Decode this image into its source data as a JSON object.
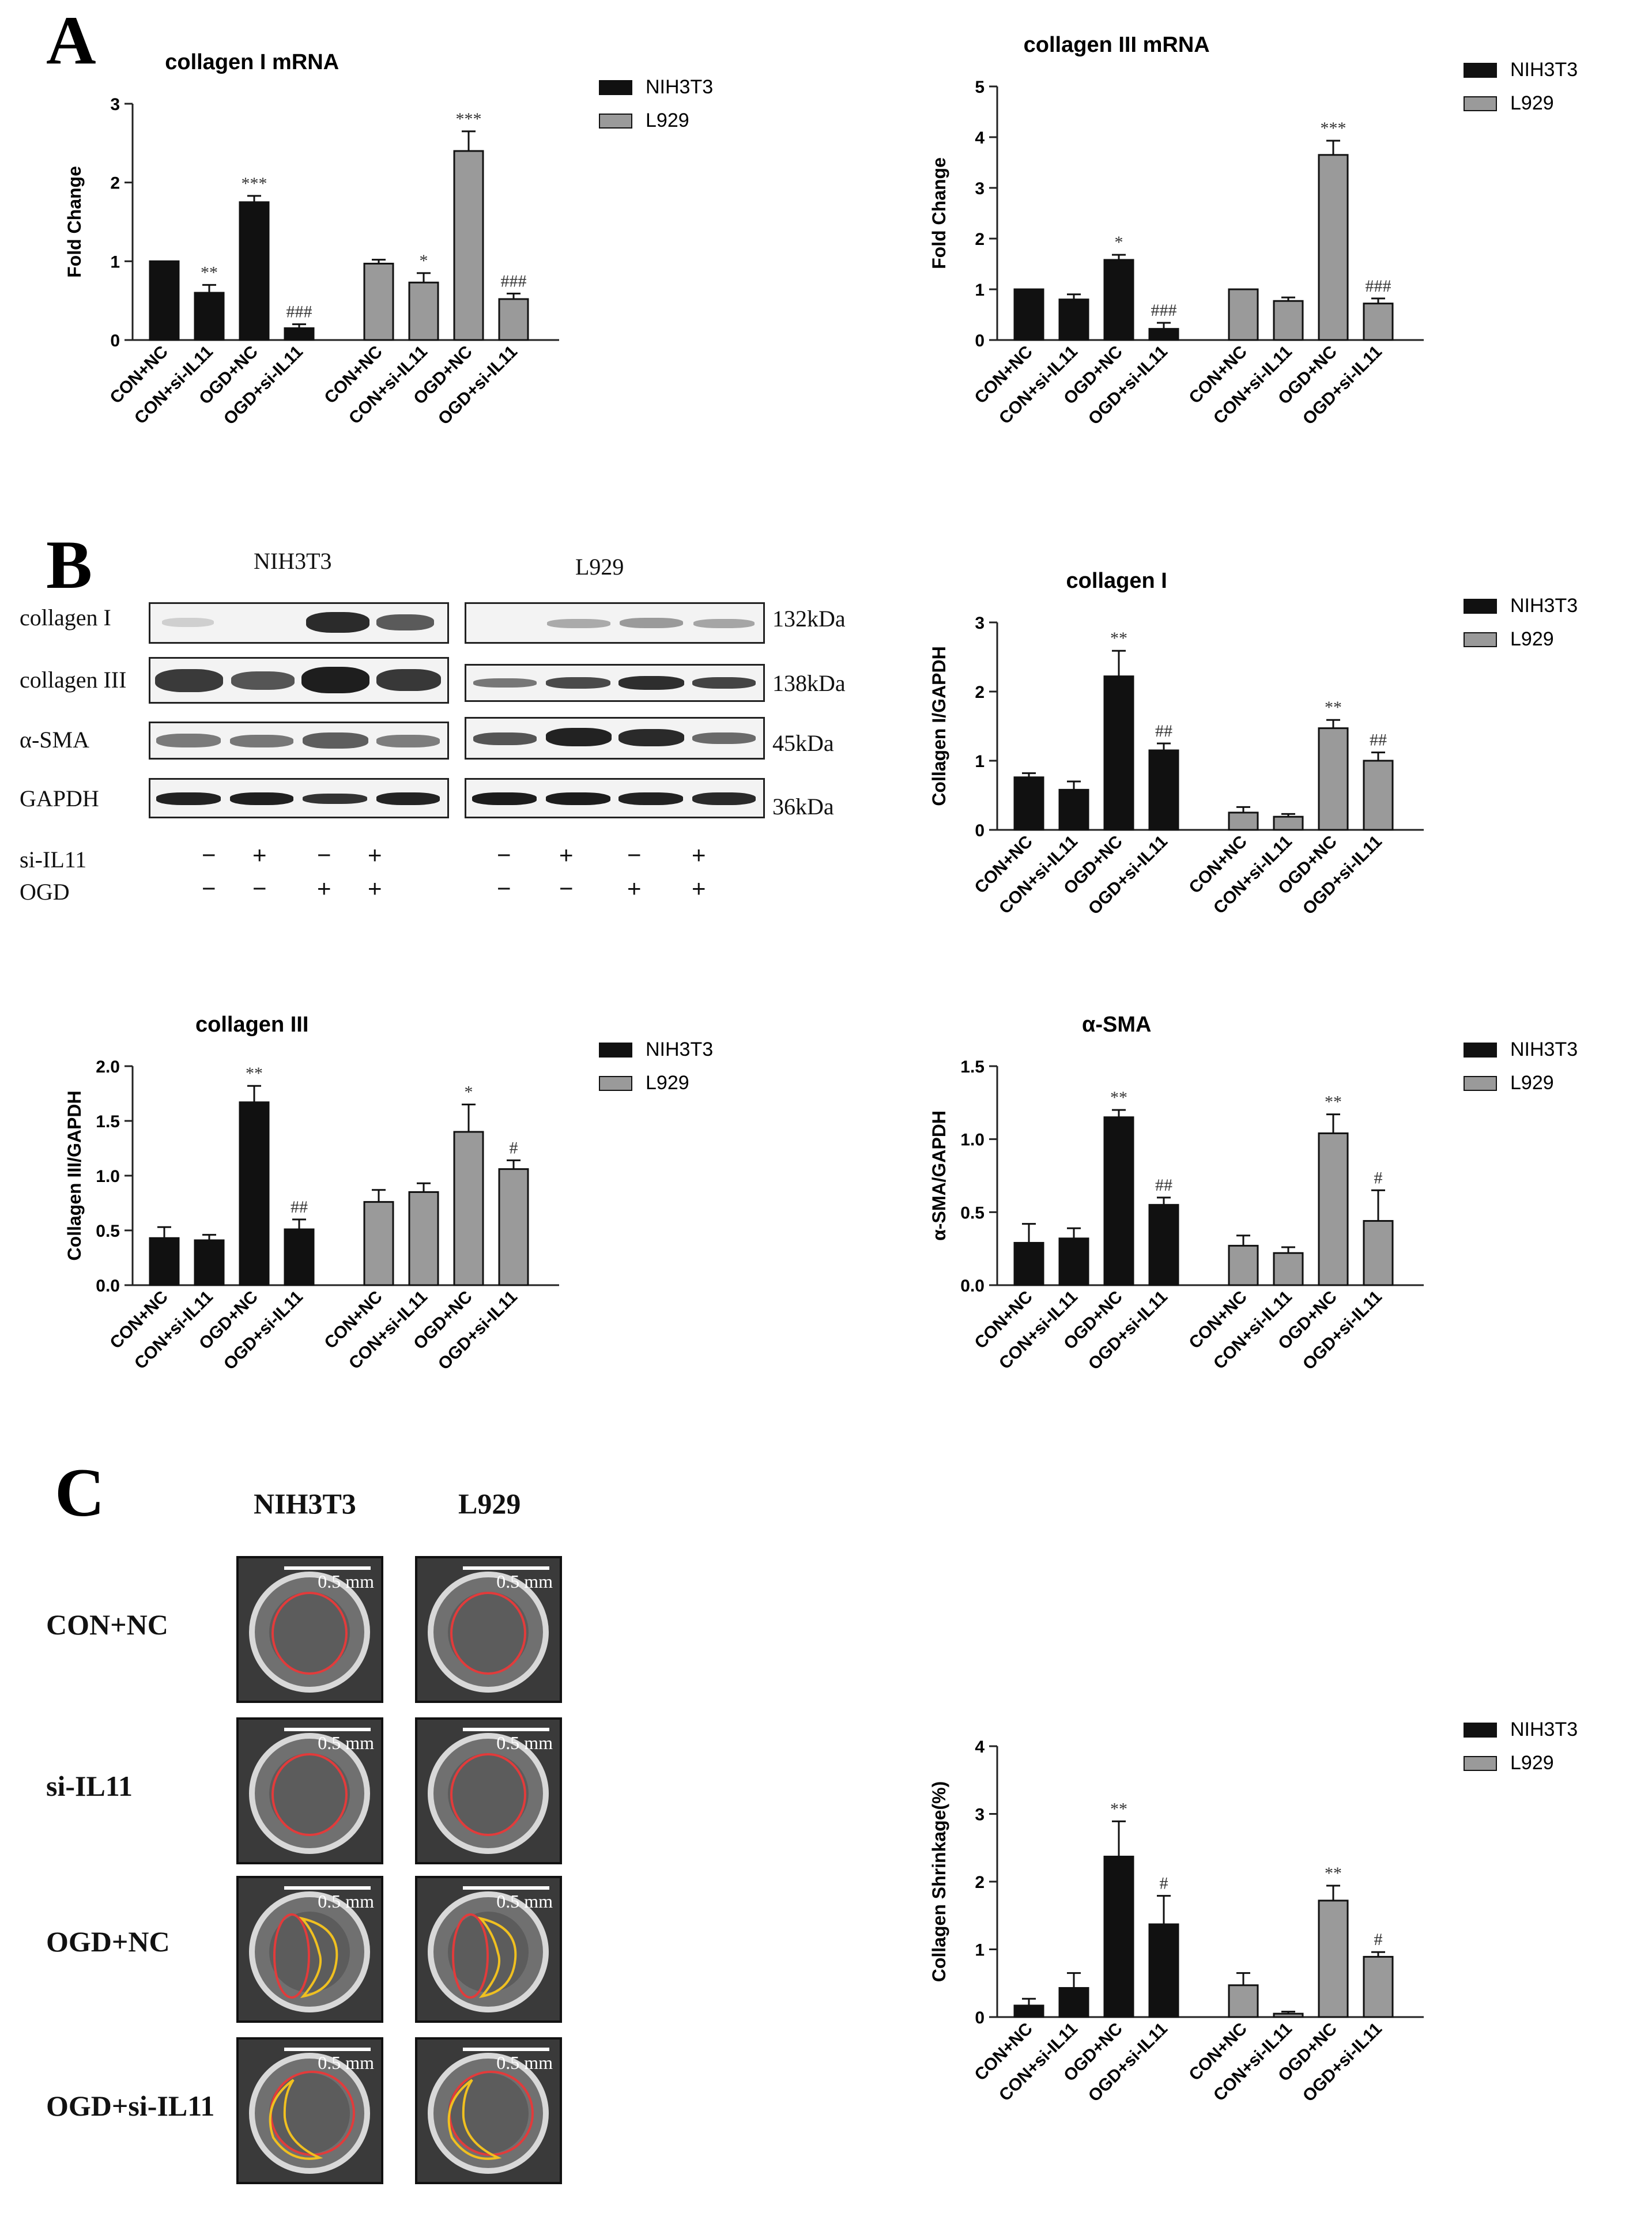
{
  "panels": {
    "a": "A",
    "b": "B",
    "c": "C"
  },
  "colors": {
    "nih3t3": "#111111",
    "l929": "#9a9a9a"
  },
  "western_blot": {
    "cell_lines": [
      "NIH3T3",
      "L929"
    ],
    "proteins": [
      {
        "name": "collagen I",
        "kda": "132kDa"
      },
      {
        "name": "collagen III",
        "kda": "138kDa"
      },
      {
        "name": "α-SMA",
        "kda": "45kDa"
      },
      {
        "name": "GAPDH",
        "kda": "36kDa"
      }
    ],
    "treatments": [
      {
        "name": "si-IL11",
        "signs": [
          "−",
          "+",
          "−",
          "+",
          "−",
          "+",
          "−",
          "+"
        ]
      },
      {
        "name": "OGD",
        "signs": [
          "−",
          "−",
          "+",
          "+",
          "−",
          "−",
          "+",
          "+"
        ]
      }
    ]
  },
  "contraction": {
    "columns": [
      "NIH3T3",
      "L929"
    ],
    "rows": [
      "CON+NC",
      "si-IL11",
      "OGD+NC",
      "OGD+si-IL11"
    ],
    "scale_label": "0.5 mm"
  },
  "chart_data": [
    {
      "id": "collagen1-mrna",
      "type": "bar",
      "title": "collagen I mRNA",
      "xlabel": "",
      "ylabel": "Fold Change",
      "ylim": [
        0,
        3
      ],
      "yticks": [
        "0",
        "1",
        "2",
        "3"
      ],
      "categories": [
        "CON+NC",
        "CON+si-IL11",
        "OGD+NC",
        "OGD+si-IL11"
      ],
      "legend": "right",
      "series": [
        {
          "name": "NIH3T3",
          "values": [
            1.0,
            0.6,
            1.75,
            0.15
          ],
          "errors": [
            0.0,
            0.1,
            0.08,
            0.05
          ],
          "marks": [
            "",
            "**",
            "***",
            "###"
          ]
        },
        {
          "name": "L929",
          "values": [
            0.97,
            0.73,
            2.4,
            0.52
          ],
          "errors": [
            0.05,
            0.12,
            0.25,
            0.07
          ],
          "marks": [
            "",
            "*",
            "***",
            "###"
          ]
        }
      ]
    },
    {
      "id": "collagen3-mrna",
      "type": "bar",
      "title": "collagen III mRNA",
      "xlabel": "",
      "ylabel": "Fold Change",
      "ylim": [
        0,
        5
      ],
      "yticks": [
        "0",
        "1",
        "2",
        "3",
        "4",
        "5"
      ],
      "categories": [
        "CON+NC",
        "CON+si-IL11",
        "OGD+NC",
        "OGD+si-IL11"
      ],
      "legend": "right",
      "series": [
        {
          "name": "NIH3T3",
          "values": [
            1.0,
            0.8,
            1.58,
            0.22
          ],
          "errors": [
            0.0,
            0.1,
            0.1,
            0.12
          ],
          "marks": [
            "",
            "",
            "*",
            "###"
          ]
        },
        {
          "name": "L929",
          "values": [
            1.0,
            0.77,
            3.65,
            0.72
          ],
          "errors": [
            0.0,
            0.07,
            0.28,
            0.1
          ],
          "marks": [
            "",
            "",
            "***",
            "###"
          ]
        }
      ]
    },
    {
      "id": "collagen1-protein",
      "type": "bar",
      "title": "collagen I",
      "xlabel": "",
      "ylabel": "Collagen I/GAPDH",
      "ylim": [
        0,
        3
      ],
      "yticks": [
        "0",
        "1",
        "2",
        "3"
      ],
      "categories": [
        "CON+NC",
        "CON+si-IL11",
        "OGD+NC",
        "OGD+si-IL11"
      ],
      "legend": "right",
      "series": [
        {
          "name": "NIH3T3",
          "values": [
            0.76,
            0.58,
            2.22,
            1.15
          ],
          "errors": [
            0.06,
            0.12,
            0.37,
            0.1
          ],
          "marks": [
            "",
            "",
            "**",
            "##"
          ]
        },
        {
          "name": "L929",
          "values": [
            0.25,
            0.19,
            1.47,
            1.0
          ],
          "errors": [
            0.08,
            0.04,
            0.12,
            0.12
          ],
          "marks": [
            "",
            "",
            "**",
            "##"
          ]
        }
      ]
    },
    {
      "id": "collagen3-protein",
      "type": "bar",
      "title": "collagen III",
      "xlabel": "",
      "ylabel": "Collagen III/GAPDH",
      "ylim": [
        0,
        2.0
      ],
      "yticks": [
        "0.0",
        "0.5",
        "1.0",
        "1.5",
        "2.0"
      ],
      "categories": [
        "CON+NC",
        "CON+si-IL11",
        "OGD+NC",
        "OGD+si-IL11"
      ],
      "legend": "right",
      "series": [
        {
          "name": "NIH3T3",
          "values": [
            0.43,
            0.41,
            1.67,
            0.51
          ],
          "errors": [
            0.1,
            0.05,
            0.15,
            0.09
          ],
          "marks": [
            "",
            "",
            "**",
            "##"
          ]
        },
        {
          "name": "L929",
          "values": [
            0.76,
            0.85,
            1.4,
            1.06
          ],
          "errors": [
            0.11,
            0.08,
            0.25,
            0.08
          ],
          "marks": [
            "",
            "",
            "*",
            "#"
          ]
        }
      ]
    },
    {
      "id": "asma-protein",
      "type": "bar",
      "title": "α-SMA",
      "xlabel": "",
      "ylabel": "α-SMA/GAPDH",
      "ylim": [
        0,
        1.5
      ],
      "yticks": [
        "0.0",
        "0.5",
        "1.0",
        "1.5"
      ],
      "categories": [
        "CON+NC",
        "CON+si-IL11",
        "OGD+NC",
        "OGD+si-IL11"
      ],
      "legend": "right",
      "series": [
        {
          "name": "NIH3T3",
          "values": [
            0.29,
            0.32,
            1.15,
            0.55
          ],
          "errors": [
            0.13,
            0.07,
            0.05,
            0.05
          ],
          "marks": [
            "",
            "",
            "**",
            "##"
          ]
        },
        {
          "name": "L929",
          "values": [
            0.27,
            0.22,
            1.04,
            0.44
          ],
          "errors": [
            0.07,
            0.04,
            0.13,
            0.21
          ],
          "marks": [
            "",
            "",
            "**",
            "#"
          ]
        }
      ]
    },
    {
      "id": "collagen-shrinkage",
      "type": "bar",
      "title": "",
      "xlabel": "",
      "ylabel": "Collagen Shrinkage(%)",
      "ylim": [
        0,
        4
      ],
      "yticks": [
        "0",
        "1",
        "2",
        "3",
        "4"
      ],
      "categories": [
        "CON+NC",
        "CON+si-IL11",
        "OGD+NC",
        "OGD+si-IL11"
      ],
      "legend": "right",
      "series": [
        {
          "name": "NIH3T3",
          "values": [
            0.17,
            0.43,
            2.37,
            1.37
          ],
          "errors": [
            0.1,
            0.22,
            0.52,
            0.42
          ],
          "marks": [
            "",
            "",
            "**",
            "#"
          ]
        },
        {
          "name": "L929",
          "values": [
            0.47,
            0.05,
            1.72,
            0.89
          ],
          "errors": [
            0.18,
            0.03,
            0.22,
            0.07
          ],
          "marks": [
            "",
            "",
            "**",
            "#"
          ]
        }
      ]
    }
  ]
}
